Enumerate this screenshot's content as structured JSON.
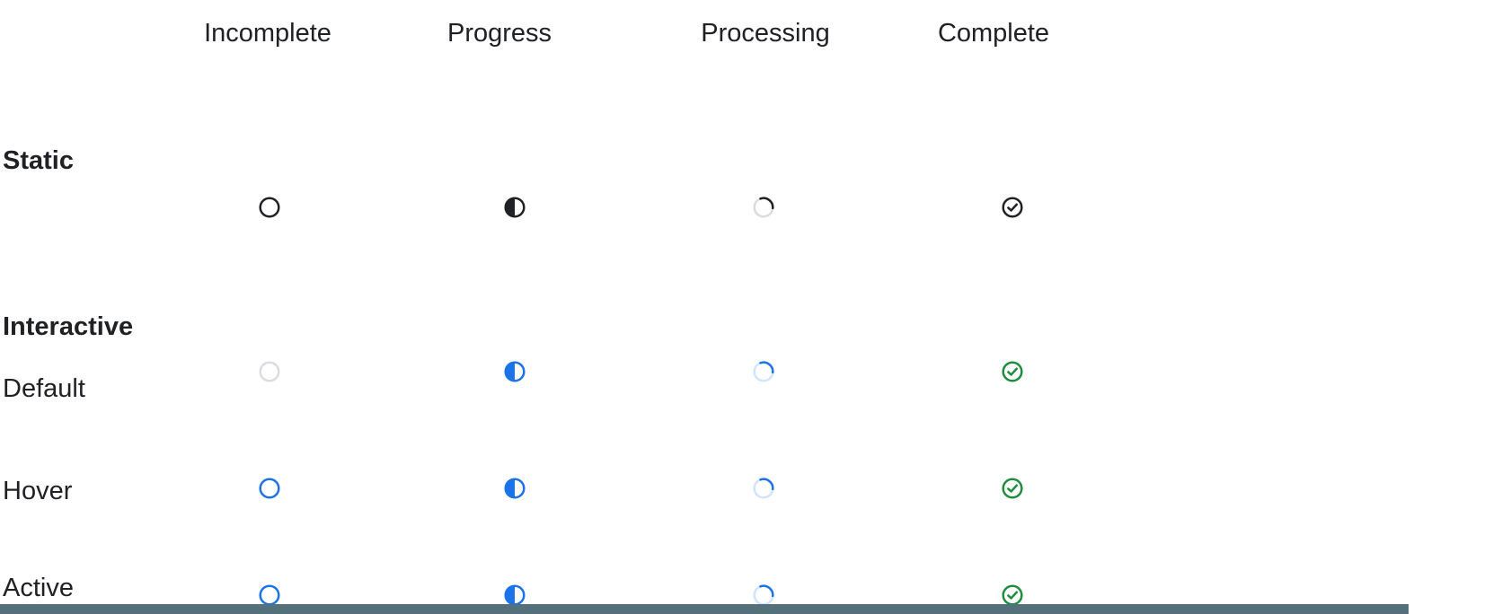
{
  "header": {
    "columns": [
      "Incomplete",
      "Progress",
      "Processing",
      "Complete"
    ]
  },
  "sections": {
    "static": {
      "title": "Static",
      "row": {
        "name": "static",
        "icons": [
          {
            "name": "incomplete-circle-icon",
            "type": "incomplete",
            "color": "#202124"
          },
          {
            "name": "progress-half-circle-icon",
            "type": "progress",
            "color": "#202124"
          },
          {
            "name": "processing-spinner-icon",
            "type": "processing",
            "color": "#202124",
            "track": "#dadce0"
          },
          {
            "name": "complete-check-icon",
            "type": "complete",
            "color": "#202124"
          }
        ]
      }
    },
    "interactive": {
      "title": "Interactive",
      "rows": [
        {
          "label": "Default",
          "name": "default",
          "icons": [
            {
              "name": "incomplete-circle-icon",
              "type": "incomplete",
              "color": "#dadce0"
            },
            {
              "name": "progress-half-circle-icon",
              "type": "progress",
              "color": "#1a73e8"
            },
            {
              "name": "processing-spinner-icon",
              "type": "processing",
              "color": "#1a73e8",
              "track": "#d2e3fc"
            },
            {
              "name": "complete-check-icon",
              "type": "complete",
              "color": "#1e8e3e"
            }
          ]
        },
        {
          "label": "Hover",
          "name": "hover",
          "icons": [
            {
              "name": "incomplete-circle-icon",
              "type": "incomplete",
              "color": "#1a73e8"
            },
            {
              "name": "progress-half-circle-icon",
              "type": "progress",
              "color": "#1a73e8"
            },
            {
              "name": "processing-spinner-icon",
              "type": "processing",
              "color": "#1a73e8",
              "track": "#d2e3fc"
            },
            {
              "name": "complete-check-icon",
              "type": "complete",
              "color": "#1e8e3e"
            }
          ]
        },
        {
          "label": "Active",
          "name": "active",
          "icons": [
            {
              "name": "incomplete-circle-icon",
              "type": "incomplete",
              "color": "#1a73e8"
            },
            {
              "name": "progress-half-circle-icon",
              "type": "progress",
              "color": "#1a73e8"
            },
            {
              "name": "processing-spinner-icon",
              "type": "processing",
              "color": "#1a73e8",
              "track": "#d2e3fc"
            },
            {
              "name": "complete-check-icon",
              "type": "complete",
              "color": "#1e8e3e"
            }
          ]
        }
      ]
    }
  },
  "footer_bar": {
    "color": "#54707a"
  }
}
